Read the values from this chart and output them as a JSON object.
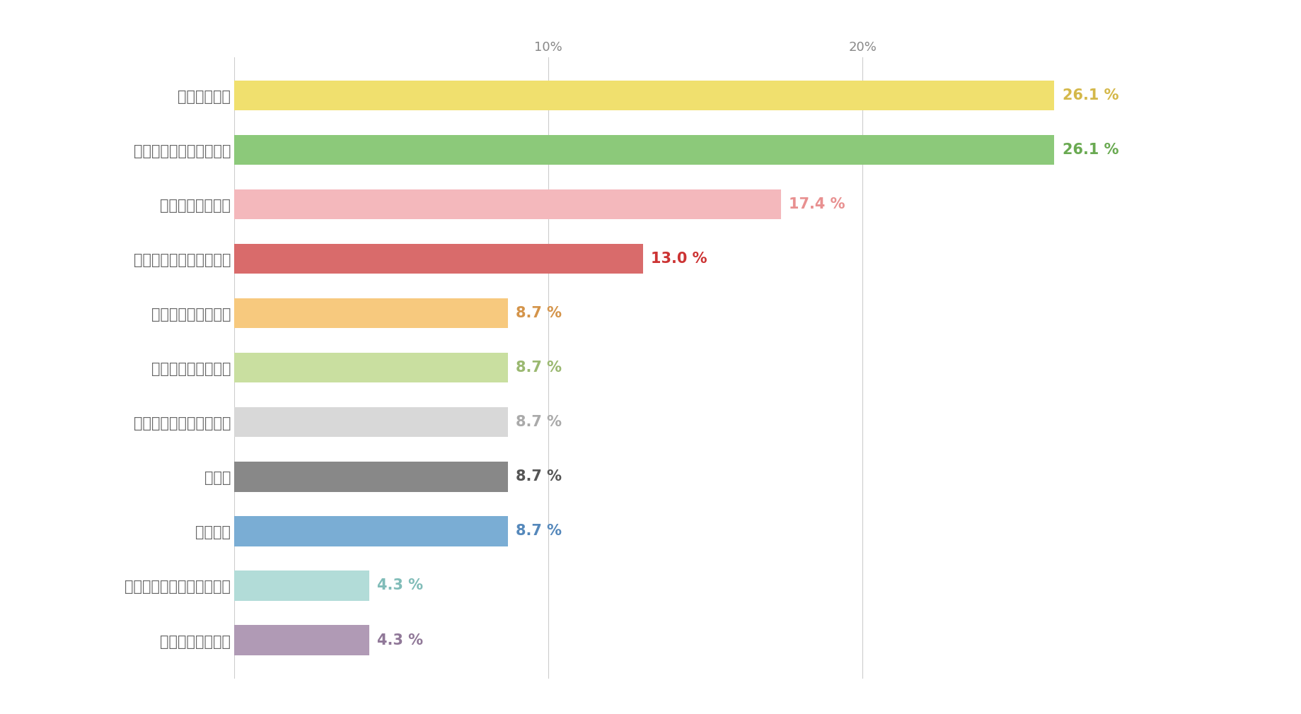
{
  "categories": [
    "手数料が高い",
    "デモトレードができない",
    "サポートが不十分",
    "取扱通貨の種類が少ない",
    "アプリが使いにくい",
    "少額取引がしにくい",
    "サーバーのエラーが多い",
    "その他",
    "特になし",
    "自動売買ツールの機能補強",
    "スプレッドが広い"
  ],
  "values": [
    26.1,
    26.1,
    17.4,
    13.0,
    8.7,
    8.7,
    8.7,
    8.7,
    8.7,
    4.3,
    4.3
  ],
  "bar_colors": [
    "#f0e06e",
    "#8cc97a",
    "#f4b8bc",
    "#d96b6b",
    "#f7c97e",
    "#c9dfa0",
    "#d8d8d8",
    "#888888",
    "#7aadd4",
    "#b2dcd8",
    "#b09ab5"
  ],
  "label_colors": [
    "#d4b84a",
    "#6aaa52",
    "#e89090",
    "#cc3333",
    "#d4944a",
    "#9ab870",
    "#aaaaaa",
    "#555555",
    "#5588bb",
    "#80bcb8",
    "#907898"
  ],
  "xlim": [
    0,
    29
  ],
  "xticks": [
    0,
    10,
    20
  ],
  "xticklabels": [
    "",
    "10%",
    "20%"
  ],
  "background_color": "#ffffff",
  "bar_height": 0.55,
  "label_fontsize": 15,
  "tick_fontsize": 13,
  "ytick_fontsize": 15
}
